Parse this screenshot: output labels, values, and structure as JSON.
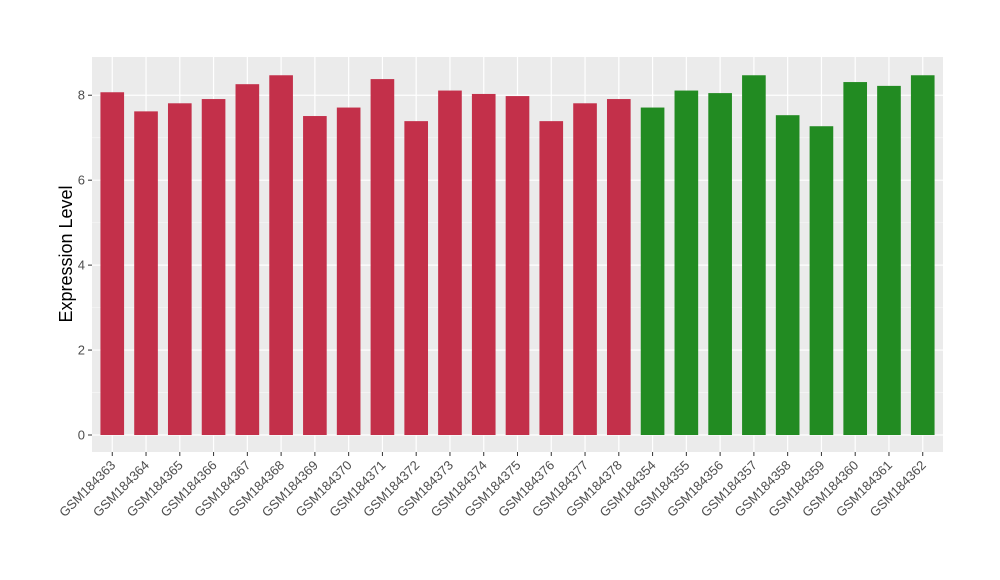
{
  "chart_data": {
    "type": "bar",
    "title": "",
    "xlabel": "",
    "ylabel": "Expression Level",
    "ylim": [
      -0.4,
      8.9
    ],
    "yticks": [
      0,
      2,
      4,
      6,
      8
    ],
    "grid": true,
    "categories": [
      "GSM184363",
      "GSM184364",
      "GSM184365",
      "GSM184366",
      "GSM184367",
      "GSM184368",
      "GSM184369",
      "GSM184370",
      "GSM184371",
      "GSM184372",
      "GSM184373",
      "GSM184374",
      "GSM184375",
      "GSM184376",
      "GSM184377",
      "GSM184378",
      "GSM184354",
      "GSM184355",
      "GSM184356",
      "GSM184357",
      "GSM184358",
      "GSM184359",
      "GSM184360",
      "GSM184361",
      "GSM184362"
    ],
    "values": [
      8.07,
      7.62,
      7.81,
      7.91,
      8.26,
      8.47,
      7.51,
      7.71,
      8.38,
      7.39,
      8.11,
      8.03,
      7.98,
      7.39,
      7.81,
      7.91,
      7.71,
      8.11,
      8.05,
      8.47,
      7.53,
      7.27,
      8.31,
      8.22,
      8.47
    ],
    "groups": [
      "a",
      "a",
      "a",
      "a",
      "a",
      "a",
      "a",
      "a",
      "a",
      "a",
      "a",
      "a",
      "a",
      "a",
      "a",
      "a",
      "b",
      "b",
      "b",
      "b",
      "b",
      "b",
      "b",
      "b",
      "b"
    ],
    "group_colors": {
      "a": "#c3304a",
      "b": "#228b22"
    }
  }
}
